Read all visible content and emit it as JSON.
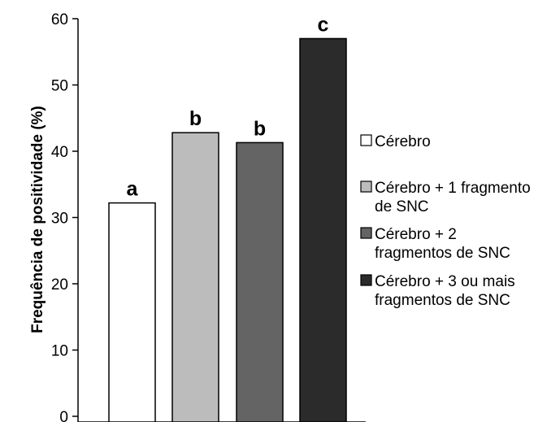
{
  "chart_data": {
    "type": "bar",
    "title": "",
    "xlabel": "",
    "ylabel": "Frequência de positividade (%)",
    "ylim": [
      0,
      60
    ],
    "yticks": [
      0,
      10,
      20,
      30,
      40,
      50,
      60
    ],
    "grid": false,
    "legend": "right",
    "categories": [
      "Cérebro",
      "Cérebro + 1 fragmento de SNC",
      "Cérebro + 2 fragmentos de SNC",
      "Cérebro + 3 ou mais fragmentos de SNC"
    ],
    "values": [
      32.2,
      42.8,
      41.3,
      57.0
    ],
    "data_labels": [
      "a",
      "b",
      "b",
      "c"
    ],
    "colors": [
      "#ffffff",
      "#bcbcbc",
      "#646464",
      "#2b2b2b"
    ],
    "legend_entries": [
      {
        "lines": [
          "Cérebro"
        ]
      },
      {
        "lines": [
          "Cérebro + 1 fragmento",
          "de SNC"
        ]
      },
      {
        "lines": [
          "Cérebro + 2",
          "fragmentos de SNC"
        ]
      },
      {
        "lines": [
          "Cérebro + 3 ou mais",
          "fragmentos de SNC"
        ]
      }
    ]
  }
}
